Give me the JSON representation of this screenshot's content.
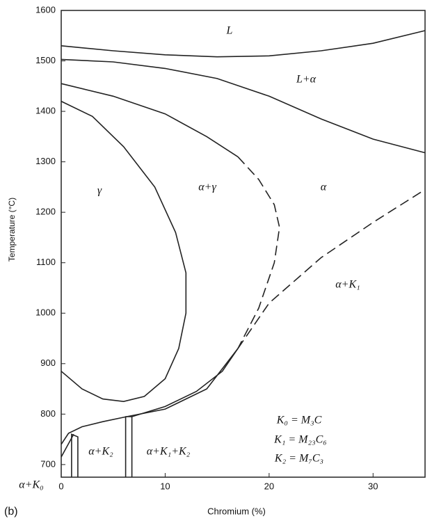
{
  "chart_data": {
    "type": "line",
    "x_label": "Chromium (%)",
    "y_label": "Temperature (°C)",
    "panel_label": "(b)",
    "xlim": [
      0,
      35
    ],
    "ylim": [
      675,
      1600
    ],
    "xticks": [
      0,
      10,
      20,
      30
    ],
    "yticks": [
      700,
      800,
      900,
      1000,
      1100,
      1200,
      1300,
      1400,
      1500,
      1600
    ],
    "series": [
      {
        "color": "#222222",
        "dashed": false,
        "x": [
          0,
          5,
          10,
          15,
          20,
          25,
          30,
          35
        ],
        "values": [
          1530,
          1520,
          1512,
          1508,
          1510,
          1520,
          1535,
          1560
        ]
      },
      {
        "color": "#222222",
        "dashed": false,
        "x": [
          0,
          5,
          10,
          15,
          20,
          25,
          30,
          35
        ],
        "values": [
          1503,
          1498,
          1485,
          1465,
          1430,
          1385,
          1345,
          1318
        ]
      },
      {
        "color": "#222222",
        "dashed": false,
        "x": [
          0,
          5,
          10,
          14,
          17
        ],
        "values": [
          1455,
          1430,
          1395,
          1350,
          1310
        ]
      },
      {
        "color": "#222222",
        "dashed": true,
        "x": [
          17,
          19,
          20.5,
          21,
          20.5,
          19,
          17
        ],
        "values": [
          1310,
          1265,
          1215,
          1170,
          1100,
          1010,
          930
        ]
      },
      {
        "color": "#222222",
        "dashed": false,
        "x": [
          0,
          3,
          6,
          9,
          11,
          12,
          12,
          11.3,
          10,
          8,
          6,
          4,
          2,
          0
        ],
        "values": [
          1420,
          1390,
          1330,
          1250,
          1160,
          1080,
          1000,
          930,
          870,
          835,
          825,
          830,
          850,
          885
        ]
      },
      {
        "color": "#222222",
        "dashed": true,
        "x": [
          17,
          20,
          25,
          30,
          35
        ],
        "values": [
          930,
          1020,
          1110,
          1180,
          1245
        ]
      },
      {
        "color": "#222222",
        "dashed": false,
        "x": [
          0,
          0.7,
          2,
          4,
          6.3,
          10,
          14,
          17
        ],
        "values": [
          740,
          762,
          775,
          785,
          795,
          810,
          850,
          930
        ]
      },
      {
        "color": "#222222",
        "dashed": false,
        "x": [
          6.8,
          10,
          13,
          15.5,
          17
        ],
        "values": [
          795,
          815,
          845,
          885,
          930
        ]
      },
      {
        "color": "#222222",
        "dashed": false,
        "x": [
          0,
          1.2
        ],
        "values": [
          715,
          760
        ]
      },
      {
        "color": "#222222",
        "dashed": false,
        "x": [
          1,
          1,
          1.6,
          1.6
        ],
        "values": [
          675,
          760,
          755,
          675
        ]
      },
      {
        "color": "#222222",
        "dashed": false,
        "x": [
          6.2,
          6.2,
          6.8,
          6.8
        ],
        "values": [
          675,
          795,
          795,
          675
        ]
      }
    ],
    "annotations": [
      "L",
      "L+α",
      "γ",
      "α+γ",
      "α",
      "α+K₁",
      "α+K₂",
      "α+K₁+K₂",
      "α+K₀",
      "K₀ = M₃C",
      "K₁ = M₂₃C₆",
      "K₂ = M₇C₃"
    ]
  }
}
